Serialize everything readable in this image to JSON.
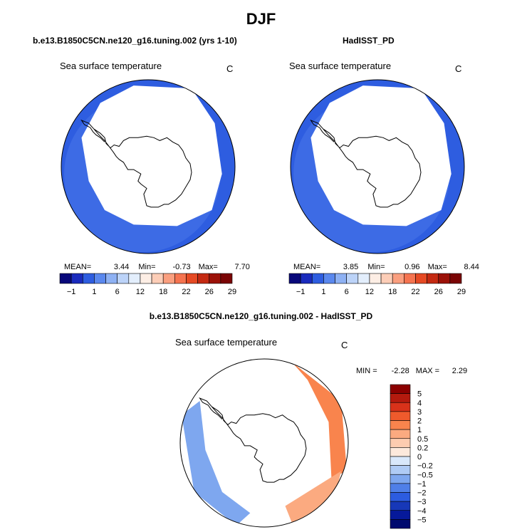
{
  "page": {
    "title": "DJF"
  },
  "chart_data": [
    {
      "type": "heatmap",
      "title": "b.e13.B1850C5CN.ne120_g16.tuning.002 (yrs 1-10)",
      "subtitle": "Sea surface temperature",
      "units": "C",
      "projection": "south-polar-stereographic",
      "stats": {
        "mean_label": "MEAN=",
        "mean": "3.44",
        "min_label": "Min=",
        "min": "-0.73",
        "max_label": "Max=",
        "max": "7.70"
      },
      "colorbar": {
        "orientation": "horizontal",
        "ticks": [
          "-1",
          "1",
          "6",
          "12",
          "18",
          "22",
          "26",
          "29"
        ],
        "colors": [
          "#08087a",
          "#1a2bbd",
          "#2e5de0",
          "#5a88ee",
          "#8eb1f3",
          "#bcd3f8",
          "#e3eefc",
          "#fdeee5",
          "#fccdb7",
          "#fa9f7f",
          "#f57450",
          "#e64a24",
          "#c42a12",
          "#9b1108",
          "#7a0505"
        ]
      }
    },
    {
      "type": "heatmap",
      "title": "HadISST_PD",
      "subtitle": "Sea surface temperature",
      "units": "C",
      "projection": "south-polar-stereographic",
      "stats": {
        "mean_label": "MEAN=",
        "mean": "3.85",
        "min_label": "Min=",
        "min": "0.96",
        "max_label": "Max=",
        "max": "8.44"
      },
      "colorbar": {
        "orientation": "horizontal",
        "ticks": [
          "-1",
          "1",
          "6",
          "12",
          "18",
          "22",
          "26",
          "29"
        ],
        "colors": [
          "#08087a",
          "#1a2bbd",
          "#2e5de0",
          "#5a88ee",
          "#8eb1f3",
          "#bcd3f8",
          "#e3eefc",
          "#fdeee5",
          "#fccdb7",
          "#fa9f7f",
          "#f57450",
          "#e64a24",
          "#c42a12",
          "#9b1108",
          "#7a0505"
        ]
      }
    },
    {
      "type": "heatmap",
      "title": "b.e13.B1850C5CN.ne120_g16.tuning.002 - HadISST_PD",
      "subtitle": "Sea surface temperature",
      "units": "C",
      "projection": "south-polar-stereographic",
      "stats": {
        "min_label": "MIN =",
        "min": "-2.28",
        "max_label": "MAX =",
        "max": "2.29"
      },
      "colorbar": {
        "orientation": "vertical",
        "ticks": [
          "5",
          "4",
          "3",
          "2",
          "1",
          "0.5",
          "0.2",
          "0",
          "-0.2",
          "-0.5",
          "-1",
          "-2",
          "-3",
          "-4",
          "-5"
        ],
        "colors": [
          "#8b0000",
          "#b41a0e",
          "#d8321a",
          "#ef5a2c",
          "#f9844d",
          "#fbaa80",
          "#fdccb0",
          "#fde9dc",
          "#d9e8fb",
          "#afcbf5",
          "#7ea7ef",
          "#4f7fe8",
          "#2c5ce0",
          "#1738b8",
          "#06199a",
          "#000a6e"
        ]
      }
    }
  ]
}
